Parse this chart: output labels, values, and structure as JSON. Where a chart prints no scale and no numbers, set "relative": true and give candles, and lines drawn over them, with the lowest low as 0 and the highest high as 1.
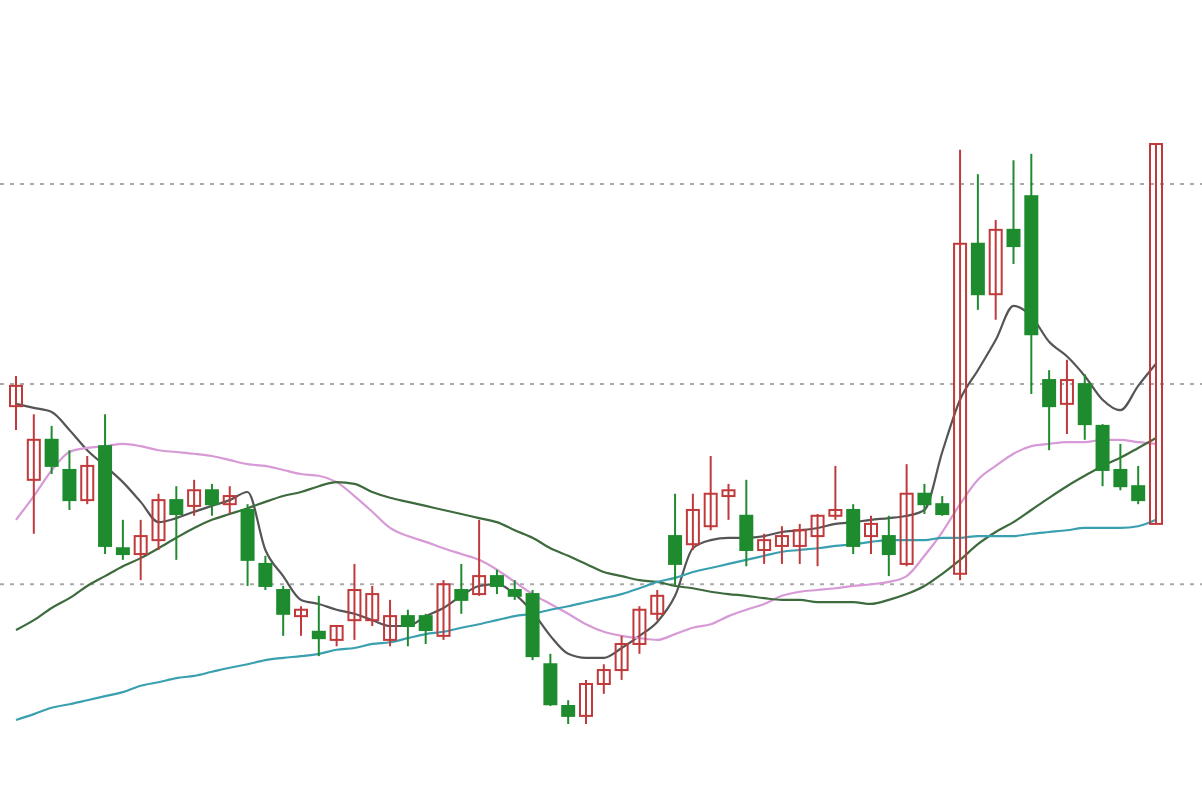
{
  "chart_data": {
    "type": "candlestick",
    "relative": true,
    "categories": [
      null,
      null,
      null,
      null,
      null,
      null,
      null,
      null,
      null,
      null,
      null,
      null,
      null,
      null,
      null,
      null,
      null,
      null,
      null,
      null,
      null,
      null,
      null,
      null,
      null,
      null,
      null,
      null,
      null,
      null,
      null,
      null,
      null,
      null,
      null,
      null,
      null,
      null,
      null,
      null,
      null,
      null,
      null,
      null,
      null,
      null,
      null,
      null,
      null,
      null,
      null,
      null,
      null,
      null,
      null,
      null,
      null,
      null,
      null,
      null,
      null,
      null,
      null,
      null,
      null
    ],
    "ohlc": [
      [
        0.548,
        0.6,
        0.507,
        0.583
      ],
      [
        0.421,
        0.534,
        0.328,
        0.49
      ],
      [
        0.49,
        0.514,
        0.431,
        0.445
      ],
      [
        0.438,
        0.472,
        0.369,
        0.386
      ],
      [
        0.386,
        0.462,
        0.379,
        0.445
      ],
      [
        0.479,
        0.534,
        0.293,
        0.307
      ],
      [
        0.303,
        0.352,
        0.283,
        0.293
      ],
      [
        0.293,
        0.352,
        0.248,
        0.324
      ],
      [
        0.317,
        0.397,
        0.3,
        0.386
      ],
      [
        0.386,
        0.41,
        0.283,
        0.362
      ],
      [
        0.376,
        0.421,
        0.359,
        0.403
      ],
      [
        0.403,
        0.414,
        0.359,
        0.379
      ],
      [
        0.379,
        0.41,
        0.362,
        0.393
      ],
      [
        0.369,
        0.379,
        0.238,
        0.283
      ],
      [
        0.276,
        0.29,
        0.231,
        0.238
      ],
      [
        0.231,
        0.238,
        0.152,
        0.19
      ],
      [
        0.186,
        0.203,
        0.152,
        0.197
      ],
      [
        0.159,
        0.221,
        0.117,
        0.148
      ],
      [
        0.145,
        0.169,
        0.134,
        0.169
      ],
      [
        0.179,
        0.276,
        0.145,
        0.231
      ],
      [
        0.179,
        0.238,
        0.169,
        0.224
      ],
      [
        0.145,
        0.214,
        0.134,
        0.186
      ],
      [
        0.186,
        0.197,
        0.134,
        0.169
      ],
      [
        0.186,
        0.19,
        0.138,
        0.162
      ],
      [
        0.152,
        0.248,
        0.145,
        0.241
      ],
      [
        0.231,
        0.276,
        0.19,
        0.214
      ],
      [
        0.224,
        0.352,
        0.221,
        0.255
      ],
      [
        0.255,
        0.266,
        0.224,
        0.238
      ],
      [
        0.231,
        0.248,
        0.214,
        0.221
      ],
      [
        0.224,
        0.231,
        0.11,
        0.117
      ],
      [
        0.103,
        0.121,
        0.031,
        0.034
      ],
      [
        0.031,
        0.041,
        0,
        0.014
      ],
      [
        0.014,
        0.076,
        0,
        0.069
      ],
      [
        0.069,
        0.103,
        0.052,
        0.093
      ],
      [
        0.093,
        0.152,
        0.076,
        0.138
      ],
      [
        0.138,
        0.203,
        0.121,
        0.197
      ],
      [
        0.19,
        0.231,
        0.179,
        0.221
      ],
      [
        0.324,
        0.397,
        0.238,
        0.276
      ],
      [
        0.31,
        0.397,
        0.3,
        0.369
      ],
      [
        0.341,
        0.462,
        0.334,
        0.397
      ],
      [
        0.393,
        0.414,
        0.352,
        0.403
      ],
      [
        0.359,
        0.421,
        0.272,
        0.3
      ],
      [
        0.3,
        0.328,
        0.276,
        0.317
      ],
      [
        0.307,
        0.341,
        0.276,
        0.324
      ],
      [
        0.307,
        0.345,
        0.276,
        0.334
      ],
      [
        0.324,
        0.362,
        0.272,
        0.359
      ],
      [
        0.359,
        0.445,
        0.352,
        0.369
      ],
      [
        0.369,
        0.379,
        0.293,
        0.307
      ],
      [
        0.324,
        0.359,
        0.293,
        0.345
      ],
      [
        0.324,
        0.359,
        0.255,
        0.293
      ],
      [
        0.276,
        0.448,
        0.272,
        0.397
      ],
      [
        0.397,
        0.414,
        0.362,
        0.379
      ],
      [
        0.379,
        0.393,
        0.359,
        0.362
      ],
      [
        0.259,
        0.99,
        0.248,
        0.828
      ],
      [
        0.828,
        0.948,
        0.714,
        0.741
      ],
      [
        0.741,
        0.869,
        0.697,
        0.852
      ],
      [
        0.852,
        0.972,
        0.793,
        0.824
      ],
      [
        0.91,
        0.983,
        0.569,
        0.672
      ],
      [
        0.593,
        0.61,
        0.472,
        0.548
      ],
      [
        0.552,
        0.628,
        0.5,
        0.593
      ],
      [
        0.586,
        0.603,
        0.49,
        0.517
      ],
      [
        0.514,
        0.517,
        0.41,
        0.438
      ],
      [
        0.438,
        0.483,
        0.403,
        0.41
      ],
      [
        0.41,
        0.445,
        0.379,
        0.386
      ],
      [
        0.345,
        1,
        0.345,
        1
      ]
    ],
    "colors": [
      "#c0393b",
      "#c0393b",
      "#1e8c2e",
      "#1e8c2e",
      "#c0393b",
      "#1e8c2e",
      "#1e8c2e",
      "#c0393b",
      "#c0393b",
      "#1e8c2e",
      "#c0393b",
      "#1e8c2e",
      "#c0393b",
      "#1e8c2e",
      "#1e8c2e",
      "#1e8c2e",
      "#c0393b",
      "#1e8c2e",
      "#c0393b",
      "#c0393b",
      "#c0393b",
      "#c0393b",
      "#1e8c2e",
      "#1e8c2e",
      "#c0393b",
      "#1e8c2e",
      "#c0393b",
      "#1e8c2e",
      "#1e8c2e",
      "#1e8c2e",
      "#1e8c2e",
      "#1e8c2e",
      "#c0393b",
      "#c0393b",
      "#c0393b",
      "#c0393b",
      "#c0393b",
      "#1e8c2e",
      "#c0393b",
      "#c0393b",
      "#c0393b",
      "#1e8c2e",
      "#c0393b",
      "#c0393b",
      "#c0393b",
      "#c0393b",
      "#c0393b",
      "#1e8c2e",
      "#c0393b",
      "#1e8c2e",
      "#c0393b",
      "#1e8c2e",
      "#1e8c2e",
      "#c0393b",
      "#1e8c2e",
      "#c0393b",
      "#1e8c2e",
      "#1e8c2e",
      "#1e8c2e",
      "#c0393b",
      "#1e8c2e",
      "#1e8c2e",
      "#1e8c2e",
      "#1e8c2e",
      "#c0393b"
    ],
    "series": [
      {
        "type": "line",
        "color": "#555555",
        "values": [
          0.552,
          0.545,
          0.538,
          0.507,
          0.472,
          0.445,
          0.417,
          0.383,
          0.348,
          0.355,
          0.366,
          0.376,
          0.386,
          0.4,
          0.3,
          0.255,
          0.214,
          0.207,
          0.197,
          0.19,
          0.179,
          0.169,
          0.169,
          0.186,
          0.2,
          0.221,
          0.238,
          0.241,
          0.224,
          0.193,
          0.152,
          0.121,
          0.114,
          0.114,
          0.131,
          0.152,
          0.176,
          0.221,
          0.303,
          0.317,
          0.321,
          0.321,
          0.324,
          0.331,
          0.334,
          0.338,
          0.345,
          0.348,
          0.352,
          0.355,
          0.359,
          0.369,
          0.469,
          0.559,
          0.61,
          0.662,
          0.721,
          0.703,
          0.659,
          0.634,
          0.6,
          0.559,
          0.541,
          0.583,
          0.621
        ]
      },
      {
        "type": "line",
        "color": "#d79ad6",
        "values": [
          0.352,
          0.393,
          0.437,
          0.469,
          0.476,
          0.479,
          0.483,
          0.479,
          0.472,
          0.469,
          0.466,
          0.462,
          0.455,
          0.448,
          0.445,
          0.438,
          0.431,
          0.428,
          0.417,
          0.393,
          0.366,
          0.338,
          0.324,
          0.314,
          0.303,
          0.293,
          0.283,
          0.266,
          0.245,
          0.224,
          0.207,
          0.19,
          0.172,
          0.159,
          0.152,
          0.148,
          0.145,
          0.155,
          0.166,
          0.172,
          0.186,
          0.197,
          0.207,
          0.221,
          0.228,
          0.231,
          0.234,
          0.238,
          0.241,
          0.245,
          0.255,
          0.29,
          0.331,
          0.379,
          0.421,
          0.445,
          0.466,
          0.479,
          0.483,
          0.486,
          0.486,
          0.49,
          0.49,
          0.486,
          0.483
        ]
      },
      {
        "type": "line",
        "color": "#3d6b3d",
        "values": [
          0.162,
          0.179,
          0.2,
          0.217,
          0.238,
          0.255,
          0.272,
          0.286,
          0.303,
          0.321,
          0.338,
          0.352,
          0.362,
          0.372,
          0.383,
          0.393,
          0.4,
          0.41,
          0.417,
          0.414,
          0.4,
          0.39,
          0.383,
          0.376,
          0.369,
          0.362,
          0.355,
          0.348,
          0.334,
          0.321,
          0.303,
          0.29,
          0.276,
          0.262,
          0.255,
          0.248,
          0.245,
          0.238,
          0.234,
          0.228,
          0.224,
          0.221,
          0.217,
          0.214,
          0.214,
          0.21,
          0.21,
          0.21,
          0.207,
          0.214,
          0.224,
          0.238,
          0.259,
          0.283,
          0.31,
          0.331,
          0.348,
          0.369,
          0.39,
          0.41,
          0.428,
          0.445,
          0.459,
          0.476,
          0.493
        ]
      },
      {
        "type": "line",
        "color": "#3aa0b0",
        "values": [
          0.007,
          0.017,
          0.028,
          0.034,
          0.041,
          0.048,
          0.055,
          0.066,
          0.072,
          0.079,
          0.083,
          0.09,
          0.097,
          0.103,
          0.11,
          0.114,
          0.117,
          0.121,
          0.128,
          0.131,
          0.138,
          0.141,
          0.148,
          0.155,
          0.159,
          0.166,
          0.172,
          0.179,
          0.186,
          0.19,
          0.197,
          0.203,
          0.21,
          0.217,
          0.224,
          0.234,
          0.245,
          0.252,
          0.262,
          0.269,
          0.276,
          0.283,
          0.29,
          0.297,
          0.3,
          0.303,
          0.307,
          0.31,
          0.314,
          0.317,
          0.317,
          0.317,
          0.321,
          0.321,
          0.324,
          0.324,
          0.324,
          0.328,
          0.331,
          0.334,
          0.338,
          0.338,
          0.338,
          0.341,
          0.352
        ]
      }
    ],
    "ref_lines": [
      {
        "axis": "y",
        "value": 0.931,
        "color": "#aaaaaa",
        "line_style": "dotted"
      },
      {
        "axis": "y",
        "value": 0.586,
        "color": "#aaaaaa",
        "line_style": "dotted"
      },
      {
        "axis": "y",
        "value": 0.241,
        "color": "#aaaaaa",
        "line_style": "dotted"
      }
    ]
  }
}
